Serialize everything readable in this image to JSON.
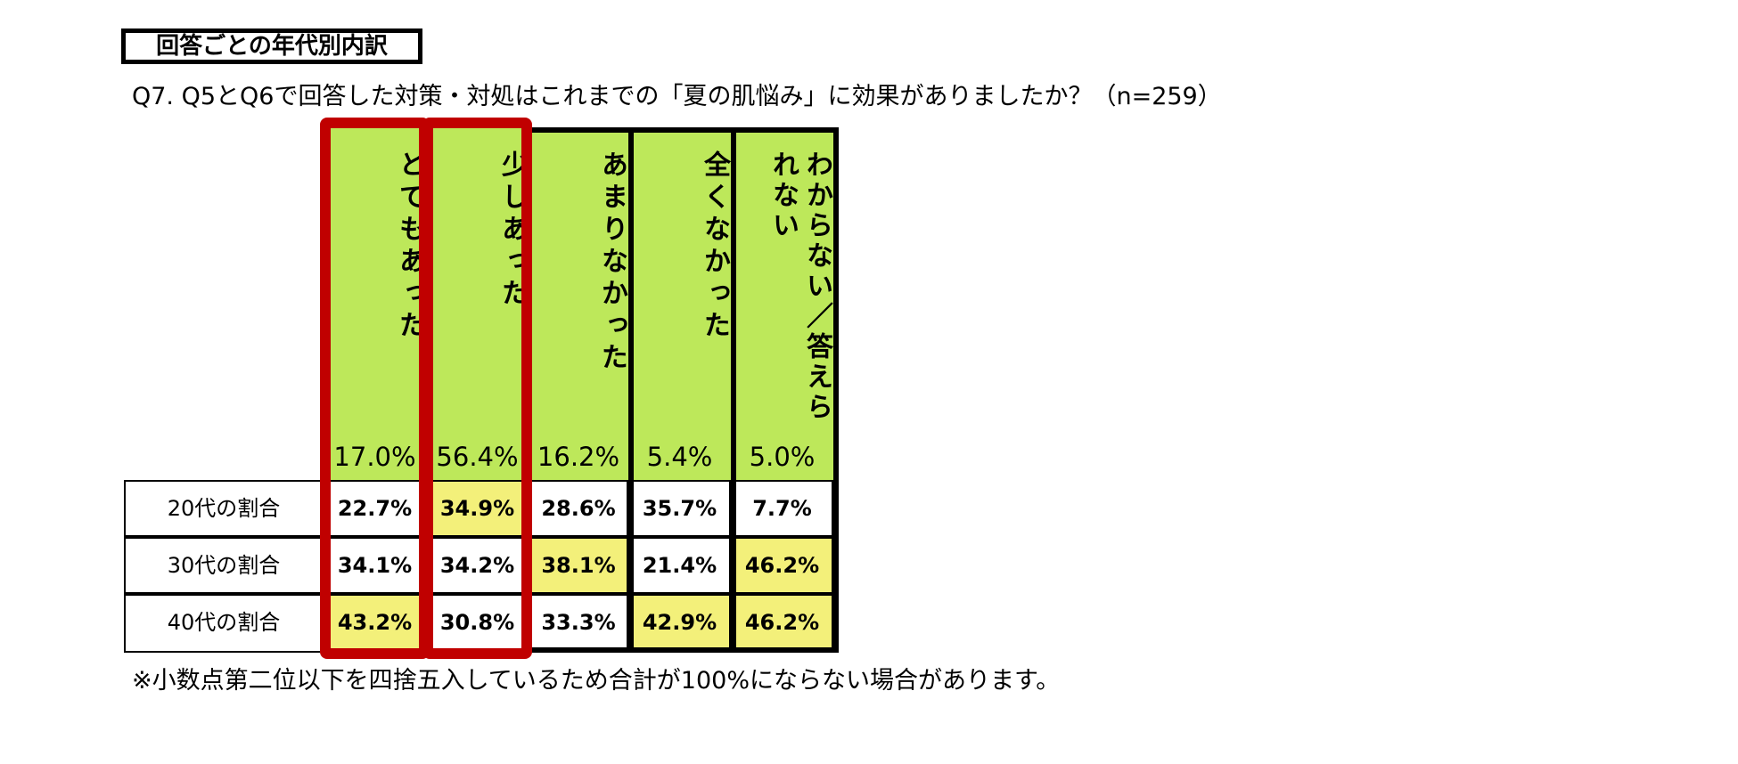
{
  "section_label": "回答ごとの年代別内訳",
  "question": "Q7. Q5とQ6で回答した対策・対処はこれまでの「夏の肌悩み」に効果がありましたか？（n=259）",
  "footnote": "※小数点第二位以下を四捨五入しているため合計が100%にならない場合があります。",
  "colors": {
    "header_bg": "#bde85a",
    "highlight": "#f3f07a",
    "red_frame": "#c00000"
  },
  "chart_data": {
    "type": "table",
    "columns": [
      {
        "label": "とてもあった",
        "total": "17.0%"
      },
      {
        "label": "少しあった",
        "total": "56.4%"
      },
      {
        "label": "あまりなかった",
        "total": "16.2%"
      },
      {
        "label": "全くなかった",
        "total": "5.4%"
      },
      {
        "label": "わからない／答えられない",
        "total": "5.0%"
      }
    ],
    "rows": [
      {
        "label": "20代の割合",
        "values": [
          "22.7%",
          "34.9%",
          "28.6%",
          "35.7%",
          "7.7%"
        ],
        "highlight": [
          false,
          true,
          false,
          false,
          false
        ]
      },
      {
        "label": "30代の割合",
        "values": [
          "34.1%",
          "34.2%",
          "38.1%",
          "21.4%",
          "46.2%"
        ],
        "highlight": [
          false,
          false,
          true,
          false,
          true
        ]
      },
      {
        "label": "40代の割合",
        "values": [
          "43.2%",
          "30.8%",
          "33.3%",
          "42.9%",
          "46.2%"
        ],
        "highlight": [
          true,
          false,
          false,
          true,
          true
        ]
      }
    ]
  }
}
